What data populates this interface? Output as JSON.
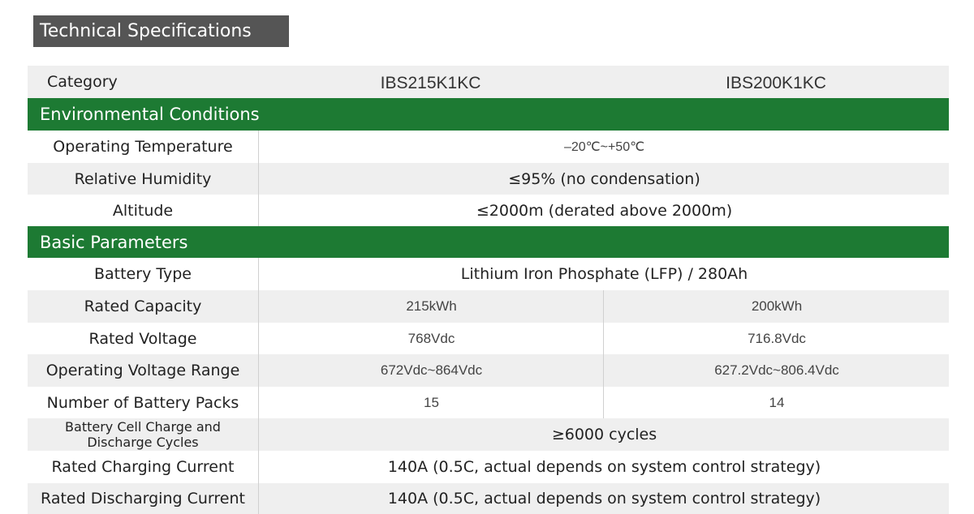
{
  "title": "Technical Specifications",
  "header": {
    "label": "Category",
    "model_1": "IBS215K1KC",
    "model_2": "IBS200K1KC"
  },
  "sections": {
    "environmental": "Environmental Conditions",
    "basic": "Basic Parameters"
  },
  "rows": {
    "operating_temperature": {
      "label": "Operating Temperature",
      "value": "–20℃~+50℃"
    },
    "relative_humidity": {
      "label": "Relative Humidity",
      "value": "≤95% (no condensation)"
    },
    "altitude": {
      "label": "Altitude",
      "value": "≤2000m (derated above 2000m)"
    },
    "battery_type": {
      "label": "Battery Type",
      "value": "Lithium Iron Phosphate (LFP) / 280Ah"
    },
    "rated_capacity": {
      "label": "Rated Capacity",
      "model_1": "215kWh",
      "model_2": "200kWh"
    },
    "rated_voltage": {
      "label": "Rated Voltage",
      "model_1": "768Vdc",
      "model_2": "716.8Vdc"
    },
    "operating_voltage_range": {
      "label": "Operating Voltage Range",
      "model_1": "672Vdc~864Vdc",
      "model_2": "627.2Vdc~806.4Vdc"
    },
    "battery_packs": {
      "label": "Number of Battery Packs",
      "model_1": "15",
      "model_2": "14"
    },
    "cycles": {
      "label_line1": "Battery Cell Charge and",
      "label_line2": "Discharge Cycles",
      "value": "≥6000 cycles"
    },
    "charging_current": {
      "label": "Rated Charging Current",
      "value": "140A (0.5C, actual depends on system control strategy)"
    },
    "discharging_current": {
      "label": "Rated Discharging Current",
      "value": "140A (0.5C, actual depends on system control strategy)"
    }
  },
  "colors": {
    "section_green": "#1d7a33",
    "title_gray": "#555555",
    "row_gray": "#efefef"
  }
}
